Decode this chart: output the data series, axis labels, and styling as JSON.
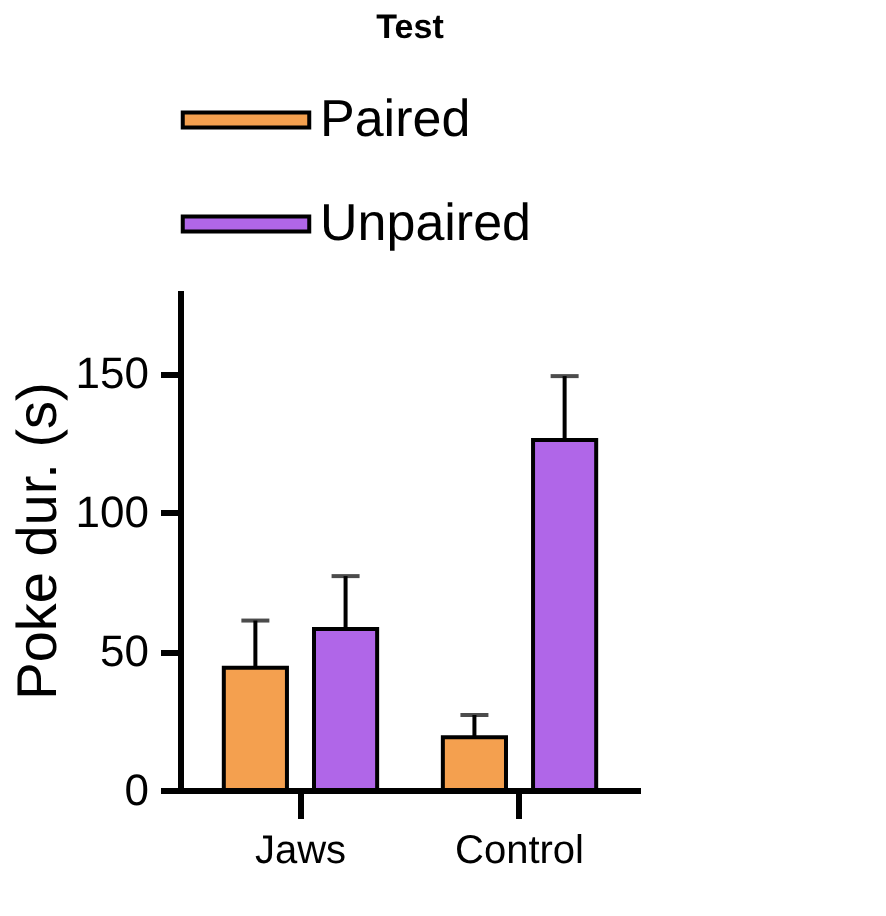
{
  "chart_data": {
    "type": "bar",
    "title": "Test",
    "ylabel": "Poke dur. (s)",
    "categories": [
      "Jaws",
      "Control"
    ],
    "series": [
      {
        "name": "Paired",
        "color": "#f4a04f",
        "values": [
          44,
          19
        ],
        "errors": [
          [
            44,
            61
          ],
          [
            19,
            27
          ]
        ]
      },
      {
        "name": "Unpaired",
        "color": "#b066e8",
        "values": [
          58,
          126
        ],
        "errors": [
          [
            58,
            77
          ],
          [
            126,
            149
          ]
        ]
      }
    ],
    "ylim": [
      0,
      180
    ],
    "yticks": [
      0,
      50,
      100,
      150
    ],
    "grid": false,
    "legend": "top"
  }
}
